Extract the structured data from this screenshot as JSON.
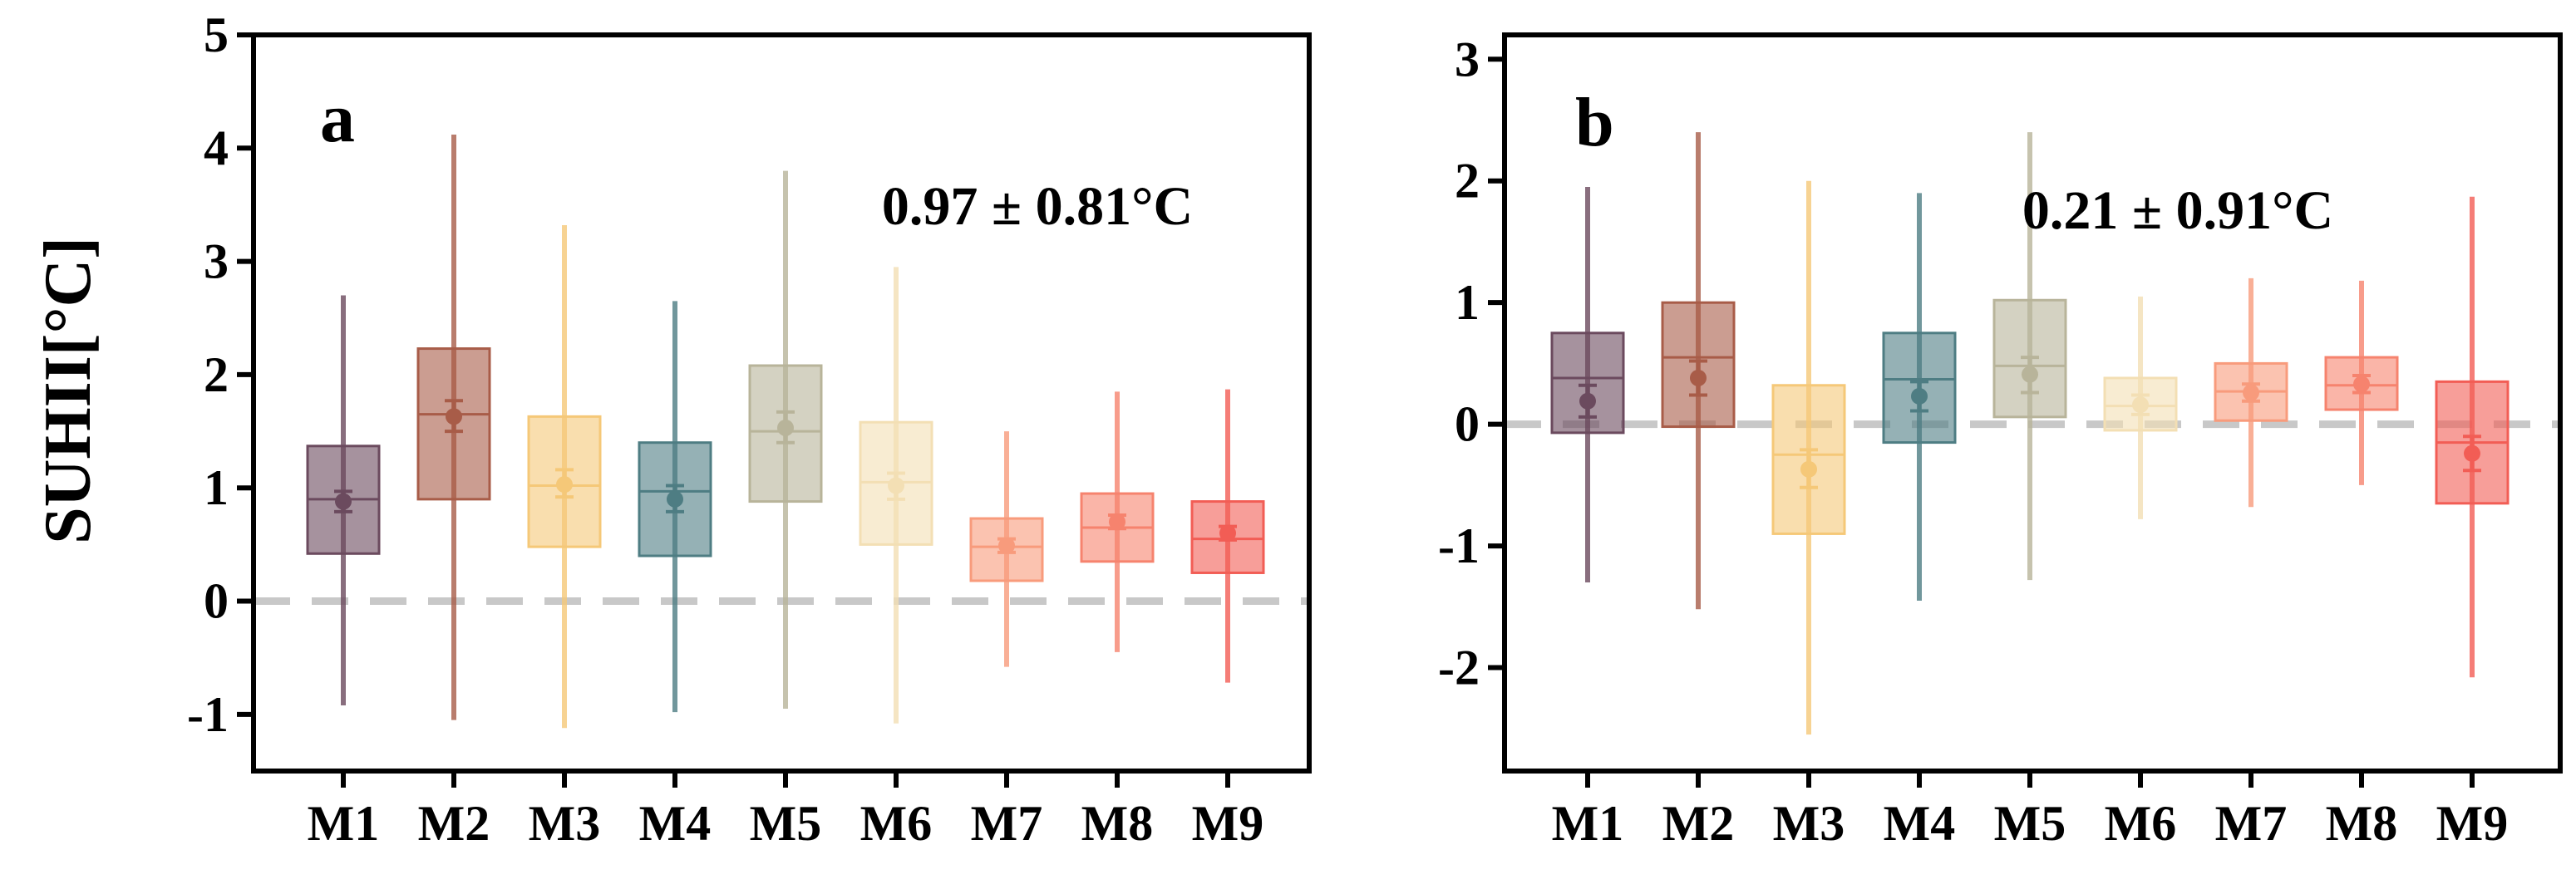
{
  "figure": {
    "ylabel": "SUHII[°C]"
  },
  "chart_data": [
    {
      "type": "box",
      "panel_label": "a",
      "annotation": "0.97 ± 0.81°C",
      "title": "",
      "xlabel": "",
      "ylabel": "SUHII[°C]",
      "ylim": [
        -1.5,
        5
      ],
      "yticks": [
        -1,
        0,
        1,
        2,
        3,
        4,
        5
      ],
      "ytick_labels": [
        "-1",
        "0",
        "1",
        "2",
        "3",
        "4",
        "5"
      ],
      "reference_line": 0,
      "categories": [
        "M1",
        "M2",
        "M3",
        "M4",
        "M5",
        "M6",
        "M7",
        "M8",
        "M9"
      ],
      "boxes": [
        {
          "min": -0.92,
          "q1": 0.42,
          "median": 0.9,
          "q3": 1.37,
          "max": 2.7,
          "mean": 0.88,
          "err_low": 0.79,
          "err_high": 0.97,
          "color": "#6b4a5e"
        },
        {
          "min": -1.05,
          "q1": 0.9,
          "median": 1.65,
          "q3": 2.23,
          "max": 4.12,
          "mean": 1.63,
          "err_low": 1.5,
          "err_high": 1.77,
          "color": "#a85c48"
        },
        {
          "min": -1.12,
          "q1": 0.48,
          "median": 1.02,
          "q3": 1.63,
          "max": 3.32,
          "mean": 1.03,
          "err_low": 0.92,
          "err_high": 1.16,
          "color": "#f5c878"
        },
        {
          "min": -0.98,
          "q1": 0.4,
          "median": 0.97,
          "q3": 1.4,
          "max": 2.65,
          "mean": 0.9,
          "err_low": 0.79,
          "err_high": 1.02,
          "color": "#4e7d83"
        },
        {
          "min": -0.95,
          "q1": 0.88,
          "median": 1.5,
          "q3": 2.08,
          "max": 3.8,
          "mean": 1.53,
          "err_low": 1.4,
          "err_high": 1.67,
          "color": "#b8b49a"
        },
        {
          "min": -1.08,
          "q1": 0.5,
          "median": 1.05,
          "q3": 1.58,
          "max": 2.95,
          "mean": 1.02,
          "err_low": 0.9,
          "err_high": 1.13,
          "color": "#f3dfb4"
        },
        {
          "min": -0.58,
          "q1": 0.18,
          "median": 0.48,
          "q3": 0.73,
          "max": 1.5,
          "mean": 0.49,
          "err_low": 0.43,
          "err_high": 0.55,
          "color": "#f89b7c"
        },
        {
          "min": -0.45,
          "q1": 0.35,
          "median": 0.65,
          "q3": 0.95,
          "max": 1.85,
          "mean": 0.7,
          "err_low": 0.64,
          "err_high": 0.76,
          "color": "#f6836e"
        },
        {
          "min": -0.72,
          "q1": 0.25,
          "median": 0.55,
          "q3": 0.88,
          "max": 1.87,
          "mean": 0.6,
          "err_low": 0.54,
          "err_high": 0.66,
          "color": "#f25d55"
        }
      ]
    },
    {
      "type": "box",
      "panel_label": "b",
      "annotation": "0.21 ± 0.91°C",
      "title": "",
      "xlabel": "",
      "ylabel": "",
      "ylim": [
        -2.85,
        3.2
      ],
      "yticks": [
        -2,
        -1,
        0,
        1,
        2,
        3
      ],
      "ytick_labels": [
        "-2",
        "-1",
        "0",
        "1",
        "2",
        "3"
      ],
      "reference_line": 0,
      "categories": [
        "M1",
        "M2",
        "M3",
        "M4",
        "M5",
        "M6",
        "M7",
        "M8",
        "M9"
      ],
      "boxes": [
        {
          "min": -1.3,
          "q1": -0.07,
          "median": 0.38,
          "q3": 0.75,
          "max": 1.95,
          "mean": 0.19,
          "err_low": 0.06,
          "err_high": 0.32,
          "color": "#6b4a5e"
        },
        {
          "min": -1.52,
          "q1": -0.02,
          "median": 0.55,
          "q3": 1.0,
          "max": 2.4,
          "mean": 0.38,
          "err_low": 0.24,
          "err_high": 0.52,
          "color": "#a85c48"
        },
        {
          "min": -2.55,
          "q1": -0.9,
          "median": -0.25,
          "q3": 0.32,
          "max": 2.0,
          "mean": -0.37,
          "err_low": -0.52,
          "err_high": -0.21,
          "color": "#f5c878"
        },
        {
          "min": -1.45,
          "q1": -0.15,
          "median": 0.37,
          "q3": 0.75,
          "max": 1.9,
          "mean": 0.23,
          "err_low": 0.11,
          "err_high": 0.35,
          "color": "#4e7d83"
        },
        {
          "min": -1.28,
          "q1": 0.06,
          "median": 0.48,
          "q3": 1.02,
          "max": 2.4,
          "mean": 0.41,
          "err_low": 0.26,
          "err_high": 0.55,
          "color": "#b8b49a"
        },
        {
          "min": -0.78,
          "q1": -0.05,
          "median": 0.15,
          "q3": 0.38,
          "max": 1.05,
          "mean": 0.16,
          "err_low": 0.08,
          "err_high": 0.24,
          "color": "#f3dfb4"
        },
        {
          "min": -0.68,
          "q1": 0.03,
          "median": 0.27,
          "q3": 0.5,
          "max": 1.2,
          "mean": 0.26,
          "err_low": 0.19,
          "err_high": 0.33,
          "color": "#f89b7c"
        },
        {
          "min": -0.5,
          "q1": 0.12,
          "median": 0.32,
          "q3": 0.55,
          "max": 1.18,
          "mean": 0.33,
          "err_low": 0.26,
          "err_high": 0.4,
          "color": "#f6836e"
        },
        {
          "min": -2.08,
          "q1": -0.65,
          "median": -0.15,
          "q3": 0.35,
          "max": 1.87,
          "mean": -0.24,
          "err_low": -0.38,
          "err_high": -0.1,
          "color": "#f25d55"
        }
      ]
    }
  ]
}
